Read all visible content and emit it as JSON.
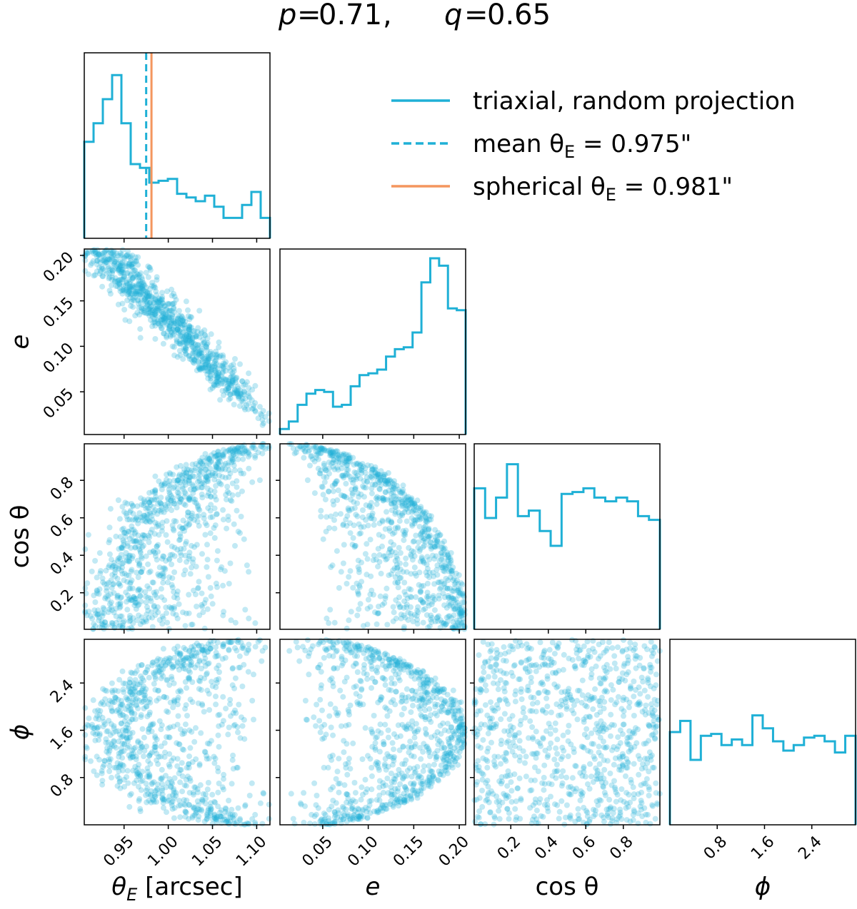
{
  "chart_data": {
    "type": "scatter",
    "title_p": "0.71",
    "title_q": "0.65",
    "colors": {
      "triaxial": "#1fb0d6",
      "spherical": "#f4965e"
    },
    "parameters": [
      {
        "key": "thetaE",
        "label_sym": "θ",
        "label_sub": "E",
        "label_unit": " [arcsec]",
        "range": [
          0.905,
          1.115
        ],
        "ticks": [
          0.95,
          1.0,
          1.05,
          1.1
        ],
        "tick_labels": [
          "0.95",
          "1.00",
          "1.05",
          "1.10"
        ]
      },
      {
        "key": "e",
        "label_sym": "e",
        "range": [
          0.003,
          0.207
        ],
        "ticks": [
          0.05,
          0.1,
          0.15,
          0.2
        ],
        "tick_labels": [
          "0.05",
          "0.10",
          "0.15",
          "0.20"
        ]
      },
      {
        "key": "cos",
        "label_sym": "cos θ",
        "range": [
          0.005,
          0.995
        ],
        "ticks": [
          0.2,
          0.4,
          0.6,
          0.8
        ],
        "tick_labels": [
          "0.2",
          "0.4",
          "0.6",
          "0.8"
        ]
      },
      {
        "key": "phi",
        "label_sym": "ϕ",
        "range": [
          0.0,
          3.14
        ],
        "ticks": [
          0.8,
          1.6,
          2.4
        ],
        "tick_labels": [
          "0.8",
          "1.6",
          "2.4"
        ]
      }
    ],
    "histograms": {
      "thetaE": [
        0.52,
        0.62,
        0.75,
        0.88,
        0.62,
        0.4,
        0.38,
        0.3,
        0.31,
        0.32,
        0.24,
        0.22,
        0.2,
        0.23,
        0.17,
        0.11,
        0.11,
        0.18,
        0.25,
        0.11
      ],
      "e": [
        0.03,
        0.07,
        0.16,
        0.22,
        0.24,
        0.23,
        0.15,
        0.16,
        0.26,
        0.32,
        0.33,
        0.35,
        0.42,
        0.46,
        0.47,
        0.55,
        0.82,
        0.95,
        0.91,
        0.68,
        0.67
      ],
      "cos": [
        0.76,
        0.6,
        0.71,
        0.89,
        0.61,
        0.64,
        0.53,
        0.45,
        0.73,
        0.74,
        0.76,
        0.71,
        0.69,
        0.71,
        0.69,
        0.61,
        0.59
      ],
      "phi": [
        0.5,
        0.56,
        0.35,
        0.48,
        0.49,
        0.43,
        0.46,
        0.43,
        0.59,
        0.52,
        0.45,
        0.4,
        0.43,
        0.47,
        0.48,
        0.45,
        0.39,
        0.48
      ]
    },
    "mean_thetaE": 0.975,
    "spherical_thetaE": 0.981,
    "legend": [
      {
        "text": "triaxial, random projection"
      },
      {
        "text": "mean θ"
      },
      {
        "text": "spherical θ"
      }
    ],
    "legend_values": {
      "mean": "0.975\"",
      "spherical": "0.981\""
    },
    "n_samples": 900
  }
}
